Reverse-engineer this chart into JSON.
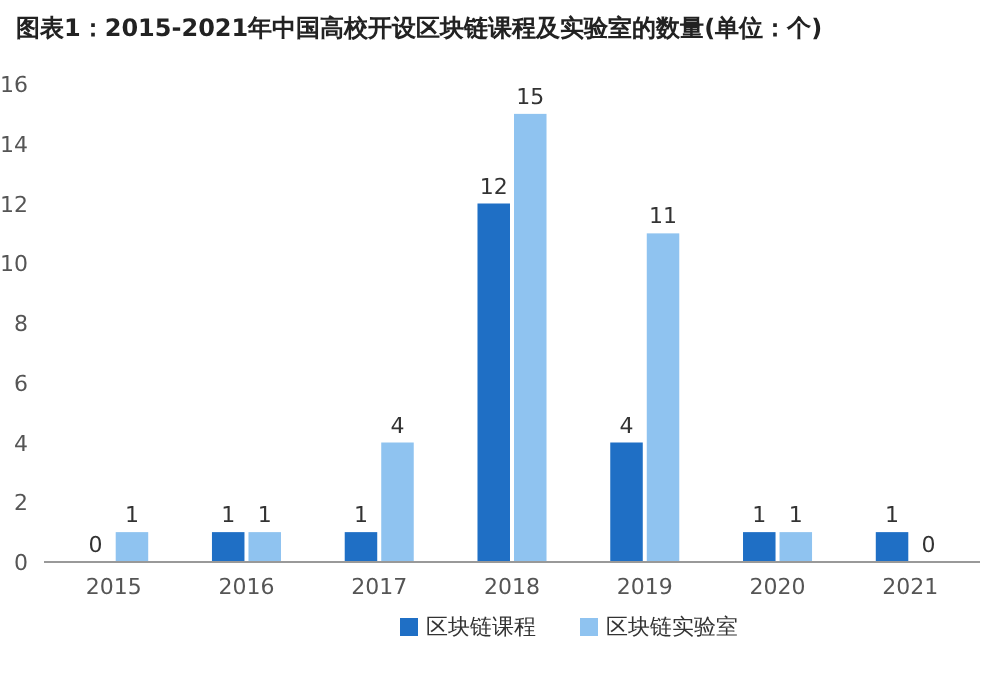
{
  "chart_data": {
    "type": "bar",
    "title": "图表1：2015-2021年中国高校开设区块链课程及实验室的数量(单位：个)",
    "categories": [
      "2015",
      "2016",
      "2017",
      "2018",
      "2019",
      "2020",
      "2021"
    ],
    "series": [
      {
        "name": "区块链课程",
        "color": "#1f6fc5",
        "values": [
          0,
          1,
          1,
          12,
          4,
          1,
          1
        ]
      },
      {
        "name": "区块链实验室",
        "color": "#8fc3f0",
        "values": [
          1,
          1,
          4,
          15,
          11,
          1,
          0
        ]
      }
    ],
    "ylim": [
      0,
      16
    ],
    "yticks": [
      0,
      2,
      4,
      6,
      8,
      10,
      12,
      14,
      16
    ],
    "data_labels": true,
    "legend": "bottom",
    "grid": false
  }
}
